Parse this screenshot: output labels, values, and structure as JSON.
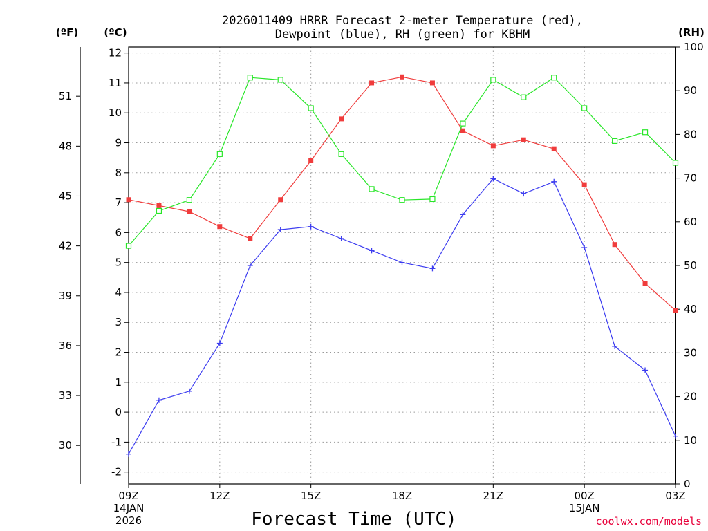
{
  "chart_data": {
    "type": "line",
    "title_line1": "2026011409 HRRR Forecast 2-meter Temperature (red),",
    "title_line2": "Dewpoint (blue), RH (green) for KBHM",
    "xlabel": "Forecast Time (UTC)",
    "credit": "coolwx.com/models",
    "units": {
      "fahrenheit": "(ºF)",
      "celsius": "(ºC)",
      "rh": "(RH)"
    },
    "x_hours": [
      0,
      1,
      2,
      3,
      4,
      5,
      6,
      7,
      8,
      9,
      10,
      11,
      12,
      13,
      14,
      15,
      16,
      17,
      18
    ],
    "x_ticks": [
      {
        "hour": 0,
        "label": "09Z",
        "sub1": "14JAN",
        "sub2": "2026"
      },
      {
        "hour": 3,
        "label": "12Z",
        "sub1": "",
        "sub2": ""
      },
      {
        "hour": 6,
        "label": "15Z",
        "sub1": "",
        "sub2": ""
      },
      {
        "hour": 9,
        "label": "18Z",
        "sub1": "",
        "sub2": ""
      },
      {
        "hour": 12,
        "label": "21Z",
        "sub1": "",
        "sub2": ""
      },
      {
        "hour": 15,
        "label": "00Z",
        "sub1": "15JAN",
        "sub2": ""
      },
      {
        "hour": 18,
        "label": "03Z",
        "sub1": "",
        "sub2": ""
      }
    ],
    "ylim_celsius": [
      -2.4,
      12.2
    ],
    "ylim_rh": [
      0,
      100
    ],
    "celsius_ticks": [
      "-2",
      "-1",
      "0",
      "1",
      "2",
      "3",
      "4",
      "5",
      "6",
      "7",
      "8",
      "9",
      "10",
      "11",
      "12"
    ],
    "fahrenheit_ticks": [
      "30",
      "33",
      "36",
      "39",
      "42",
      "45",
      "48",
      "51"
    ],
    "rh_ticks": [
      "0",
      "10",
      "20",
      "30",
      "40",
      "50",
      "60",
      "70",
      "80",
      "90",
      "100"
    ],
    "grid": true,
    "colors": {
      "temperature": "#f03c3c",
      "dewpoint": "#3c3cf0",
      "rh": "#28e628",
      "credit": "#e8003a"
    },
    "series": [
      {
        "name": "Temperature",
        "unit": "C",
        "marker": "filled-square",
        "values": [
          7.1,
          6.9,
          6.7,
          6.2,
          5.8,
          7.1,
          8.4,
          9.8,
          11.0,
          11.2,
          11.0,
          9.4,
          8.9,
          9.1,
          8.8,
          7.6,
          5.6,
          4.3,
          3.4
        ]
      },
      {
        "name": "Dewpoint",
        "unit": "C",
        "marker": "plus",
        "values": [
          -1.4,
          0.4,
          0.7,
          2.3,
          4.9,
          6.1,
          6.2,
          5.8,
          5.4,
          5.0,
          4.8,
          6.6,
          7.8,
          7.3,
          7.7,
          5.5,
          2.2,
          1.4,
          -0.8
        ]
      },
      {
        "name": "RH",
        "unit": "%",
        "marker": "open-square",
        "values": [
          54.5,
          62.5,
          65,
          75.5,
          93,
          92.5,
          86,
          75.5,
          67.5,
          65,
          65.2,
          82.5,
          92.5,
          88.5,
          93,
          86,
          78.5,
          80.5,
          73.5
        ]
      }
    ]
  }
}
